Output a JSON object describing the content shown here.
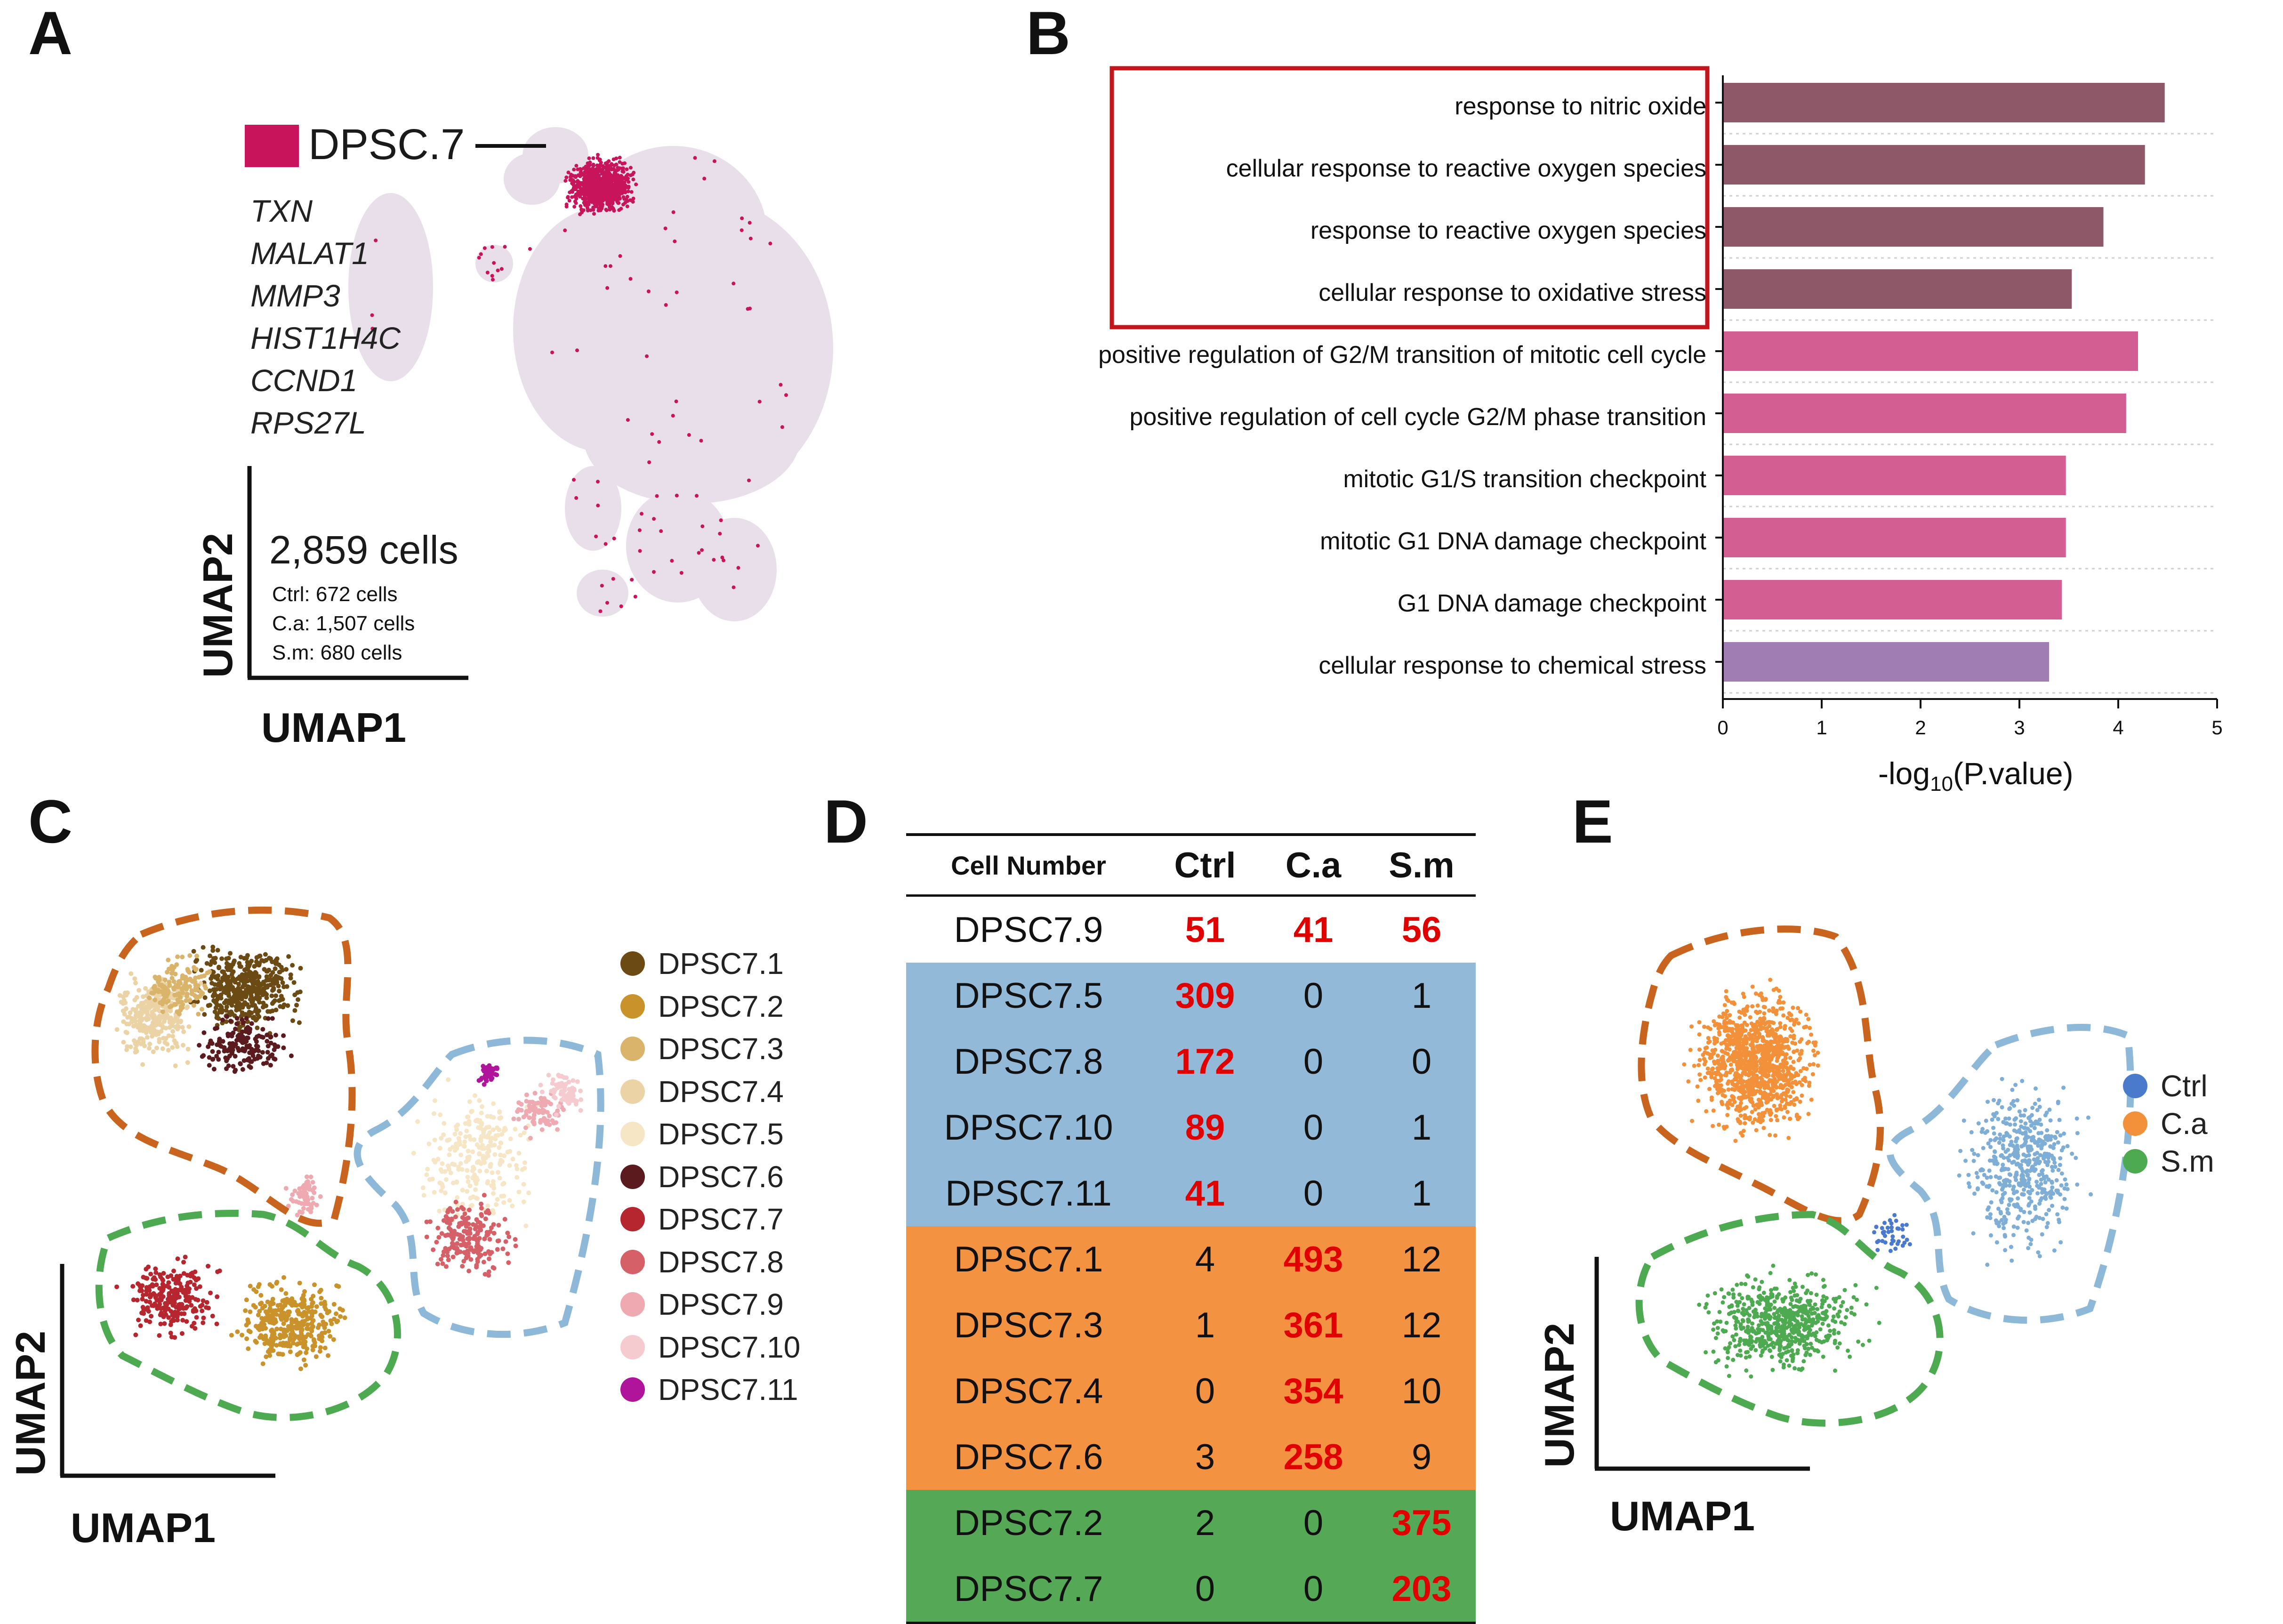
{
  "panels": {
    "A": "A",
    "B": "B",
    "C": "C",
    "D": "D",
    "E": "E"
  },
  "panelA": {
    "cluster_label": "DPSC.7",
    "cluster_color": "#c8145a",
    "background_color": "#e9dfea",
    "genes": [
      "TXN",
      "MALAT1",
      "MMP3",
      "HIST1H4C",
      "CCND1",
      "RPS27L"
    ],
    "total_cells": "2,859 cells",
    "counts": [
      "Ctrl: 672 cells",
      "C.a: 1,507 cells",
      "S.m: 680 cells"
    ],
    "xlabel": "UMAP1",
    "ylabel": "UMAP2"
  },
  "chart_data": {
    "type": "bar",
    "orientation": "horizontal",
    "categories": [
      "response to nitric oxide",
      "cellular response to reactive oxygen species",
      "response to reactive oxygen species",
      "cellular response to oxidative stress",
      "positive regulation of G2/M transition of mitotic cell cycle",
      "positive regulation of cell cycle G2/M phase transition",
      "mitotic G1/S transition checkpoint",
      "mitotic G1 DNA damage checkpoint",
      "G1 DNA damage checkpoint",
      "cellular response to chemical stress"
    ],
    "values": [
      4.47,
      4.27,
      3.85,
      3.53,
      4.2,
      4.08,
      3.47,
      3.47,
      3.43,
      3.3
    ],
    "colors": [
      "#8e5868",
      "#8e5868",
      "#8e5868",
      "#8e5868",
      "#d25e92",
      "#d25e92",
      "#d25e92",
      "#d25e92",
      "#d25e92",
      "#a07db2"
    ],
    "xlim": [
      0,
      5
    ],
    "xticks": [
      "0",
      "1",
      "2",
      "3",
      "4",
      "5"
    ],
    "xlabel_prefix": "-log",
    "xlabel_sub": "10",
    "xlabel_suffix": "(P.value)",
    "highlight_color": "#c0161c"
  },
  "panelC": {
    "legend": [
      {
        "label": "DPSC7.1",
        "color": "#6b4a14"
      },
      {
        "label": "DPSC7.2",
        "color": "#c9922a"
      },
      {
        "label": "DPSC7.3",
        "color": "#d9b46a"
      },
      {
        "label": "DPSC7.4",
        "color": "#ecd3a6"
      },
      {
        "label": "DPSC7.5",
        "color": "#f6e6c6"
      },
      {
        "label": "DPSC7.6",
        "color": "#5a1a1e"
      },
      {
        "label": "DPSC7.7",
        "color": "#b5262e"
      },
      {
        "label": "DPSC7.8",
        "color": "#d66068"
      },
      {
        "label": "DPSC7.9",
        "color": "#eeaab0"
      },
      {
        "label": "DPSC7.10",
        "color": "#f6cbcf"
      },
      {
        "label": "DPSC7.11",
        "color": "#b0149a"
      }
    ],
    "xlabel": "UMAP1",
    "ylabel": "UMAP2"
  },
  "panelD": {
    "headers": [
      "Cell Number",
      "Ctrl",
      "C.a",
      "S.m"
    ],
    "rows": [
      {
        "name": "DPSC7.9",
        "ctrl": "51",
        "ca": "41",
        "sm": "56",
        "bg": "#ffffff",
        "bold": [
          1,
          2,
          3
        ]
      },
      {
        "name": "DPSC7.5",
        "ctrl": "309",
        "ca": "0",
        "sm": "1",
        "bg": "#93b9d8",
        "bold": [
          1
        ]
      },
      {
        "name": "DPSC7.8",
        "ctrl": "172",
        "ca": "0",
        "sm": "0",
        "bg": "#93b9d8",
        "bold": [
          1
        ]
      },
      {
        "name": "DPSC7.10",
        "ctrl": "89",
        "ca": "0",
        "sm": "1",
        "bg": "#93b9d8",
        "bold": [
          1
        ]
      },
      {
        "name": "DPSC7.11",
        "ctrl": "41",
        "ca": "0",
        "sm": "1",
        "bg": "#93b9d8",
        "bold": [
          1
        ]
      },
      {
        "name": "DPSC7.1",
        "ctrl": "4",
        "ca": "493",
        "sm": "12",
        "bg": "#f39240",
        "bold": [
          2
        ]
      },
      {
        "name": "DPSC7.3",
        "ctrl": "1",
        "ca": "361",
        "sm": "12",
        "bg": "#f39240",
        "bold": [
          2
        ]
      },
      {
        "name": "DPSC7.4",
        "ctrl": "0",
        "ca": "354",
        "sm": "10",
        "bg": "#f39240",
        "bold": [
          2
        ]
      },
      {
        "name": "DPSC7.6",
        "ctrl": "3",
        "ca": "258",
        "sm": "9",
        "bg": "#f39240",
        "bold": [
          2
        ]
      },
      {
        "name": "DPSC7.2",
        "ctrl": "2",
        "ca": "0",
        "sm": "375",
        "bg": "#55a855",
        "bold": [
          3
        ]
      },
      {
        "name": "DPSC7.7",
        "ctrl": "0",
        "ca": "0",
        "sm": "203",
        "bg": "#55a855",
        "bold": [
          3
        ]
      }
    ]
  },
  "panelE": {
    "legend": [
      {
        "label": "Ctrl",
        "color": "#4a7acb"
      },
      {
        "label": "C.a",
        "color": "#f2913a"
      },
      {
        "label": "S.m",
        "color": "#4daa50"
      }
    ],
    "xlabel": "UMAP1",
    "ylabel": "UMAP2"
  }
}
